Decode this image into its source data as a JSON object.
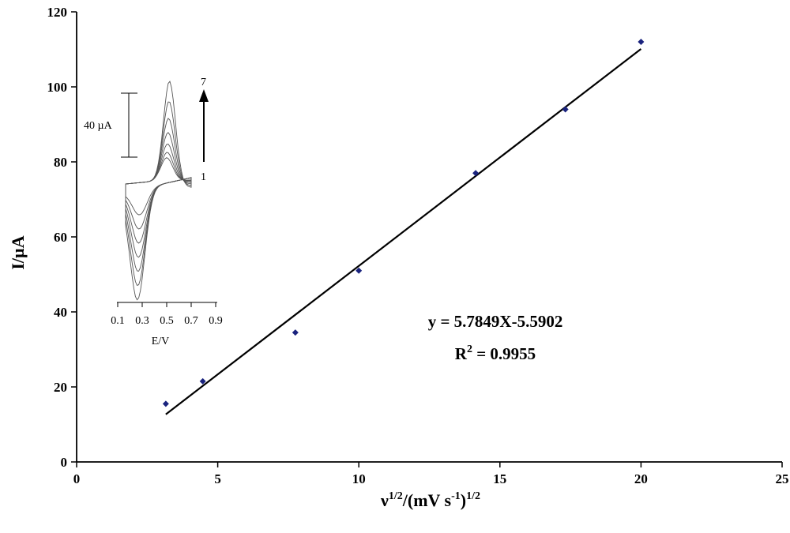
{
  "chart_data": [
    {
      "type": "scatter",
      "xlabel": "ν",
      "xlabel_sup1": "1/2",
      "xlabel_mid": "/(mV s",
      "xlabel_sup2": "-1",
      "xlabel_end": ")",
      "xlabel_sup3": "1/2",
      "ylabel": "I/µA",
      "xlim": [
        0,
        25
      ],
      "ylim": [
        0,
        120
      ],
      "x_ticks": [
        "0",
        "5",
        "10",
        "15",
        "20",
        "25"
      ],
      "y_ticks": [
        "0",
        "20",
        "40",
        "60",
        "80",
        "100",
        "120"
      ],
      "series": [
        {
          "x": [
            3.16,
            4.47,
            7.75,
            10.0,
            14.14,
            17.32,
            20.0
          ],
          "y": [
            15.5,
            21.5,
            34.5,
            51.0,
            77.0,
            94.0,
            112.0
          ],
          "color": "#1a237e"
        }
      ],
      "fit": {
        "slope": 5.7849,
        "intercept": -5.5902,
        "x_start": 3.16,
        "x_end": 20.0
      },
      "equation_prefix": "y = 5.7849X-5.5902",
      "r2_label": "R",
      "r2_sup": "2",
      "r2_value": " = 0.9955",
      "grid": false,
      "legend": "none"
    },
    {
      "type": "line",
      "xlabel": "E/V",
      "x_ticks": [
        "0.1",
        "0.3",
        "0.5",
        "0.7",
        "0.9"
      ],
      "xlim": [
        0.1,
        0.9
      ],
      "scale_bar_label": "40 µA",
      "arrow_top_label": "7",
      "arrow_bottom_label": "1",
      "curve_count": 7
    }
  ]
}
